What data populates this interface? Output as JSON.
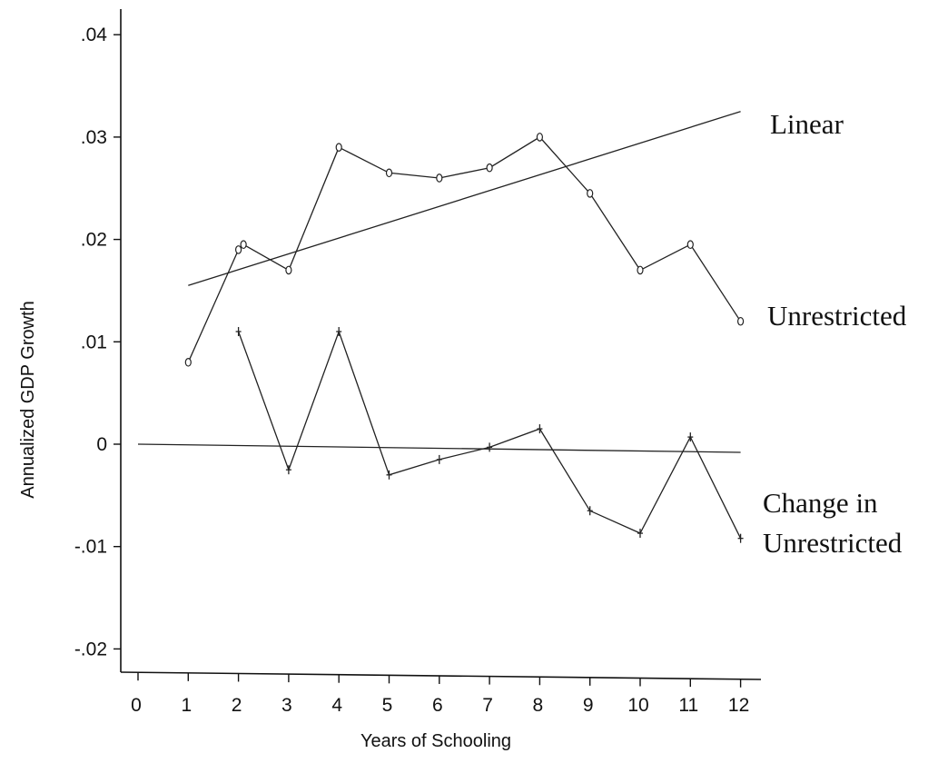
{
  "chart_data": {
    "type": "line",
    "xlabel": "Years of Schooling",
    "ylabel": "Annualized GDP Growth",
    "xlim": [
      0,
      12
    ],
    "ylim": [
      -0.02,
      0.04
    ],
    "x_ticks": [
      "0",
      "1",
      "2",
      "3",
      "4",
      "5",
      "6",
      "7",
      "8",
      "9",
      "10",
      "11",
      "12"
    ],
    "y_ticks": [
      "-.02",
      "-.01",
      "0",
      ".01",
      ".02",
      ".03",
      ".04"
    ],
    "y_tick_values": [
      -0.02,
      -0.01,
      0,
      0.01,
      0.02,
      0.03,
      0.04
    ],
    "series": [
      {
        "name": "Linear",
        "style": "line",
        "x": [
          1,
          12
        ],
        "values": [
          0.0155,
          0.0325
        ]
      },
      {
        "name": "Unrestricted",
        "style": "line-circle",
        "x": [
          1,
          2,
          2.1,
          3,
          4,
          5,
          6,
          7,
          8,
          9,
          10,
          11,
          12
        ],
        "values": [
          0.008,
          0.019,
          0.0195,
          0.017,
          0.029,
          0.0265,
          0.026,
          0.027,
          0.03,
          0.0245,
          0.017,
          0.0195,
          0.012
        ]
      },
      {
        "name": "Change in Unrestricted",
        "style": "line-plus",
        "x": [
          2,
          3,
          4,
          5,
          6,
          7,
          8,
          9,
          10,
          11,
          12
        ],
        "values": [
          0.011,
          -0.0025,
          0.011,
          -0.003,
          -0.0015,
          -0.0003,
          0.0015,
          -0.0065,
          -0.0087,
          0.0007,
          -0.0092
        ]
      },
      {
        "name": "",
        "style": "line",
        "x": [
          0,
          12
        ],
        "values": [
          0.0,
          -0.0008
        ]
      }
    ],
    "labels": {
      "linear": "Linear",
      "unrestricted": "Unrestricted",
      "change_line1": "Change in",
      "change_line2": "Unrestricted"
    },
    "grid": false
  }
}
